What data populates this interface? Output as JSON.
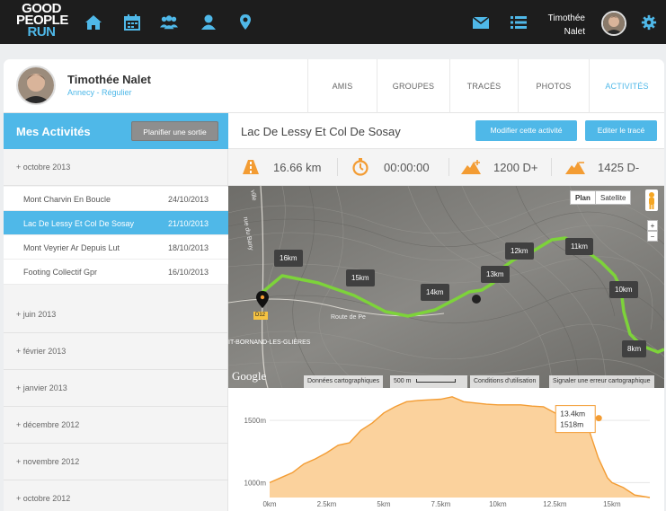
{
  "app": {
    "logo_line1": "GOOD",
    "logo_line2": "PEOPLE",
    "logo_line3": "RUN",
    "user_first": "Timothée",
    "user_last": "Nalet"
  },
  "profile": {
    "name": "Timothée Nalet",
    "subtitle": "Annecy - Régulier",
    "tabs": [
      {
        "label": "AMIS"
      },
      {
        "label": "GROUPES"
      },
      {
        "label": "TRACÉS"
      },
      {
        "label": "PHOTOS"
      },
      {
        "label": "ACTIVITÉS"
      }
    ]
  },
  "sidebar": {
    "title": "Mes Activités",
    "plan_button": "Planifier une sortie",
    "groups": [
      {
        "label": "+ octobre 2013"
      },
      {
        "label": "+ juin 2013"
      },
      {
        "label": "+ février 2013"
      },
      {
        "label": "+ janvier 2013"
      },
      {
        "label": "+ décembre 2012"
      },
      {
        "label": "+ novembre 2012"
      },
      {
        "label": "+ octobre 2012"
      }
    ],
    "activities": [
      {
        "name": "Mont Charvin En Boucle",
        "date": "24/10/2013"
      },
      {
        "name": "Lac De Lessy Et Col De Sosay",
        "date": "21/10/2013"
      },
      {
        "name": "Mont Veyrier Ar Depuis Lut",
        "date": "18/10/2013"
      },
      {
        "name": "Footing Collectif Gpr",
        "date": "16/10/2013"
      }
    ]
  },
  "activity": {
    "title": "Lac De Lessy Et Col De Sosay",
    "edit_button": "Modifier cette activité",
    "trace_button": "Editer le tracé",
    "distance": "16.66 km",
    "duration": "00:00:00",
    "ascent": "1200 D+",
    "descent": "1425 D-"
  },
  "map": {
    "plan_label": "Plan",
    "satellite_label": "Satellite",
    "zoom_in": "+",
    "zoom_out": "−",
    "road_marker": "D12",
    "road_label": "Route de Pe",
    "place_label": "IT-BORNAND-LES-GLIÈRES",
    "street_label": "rue du Bany",
    "street_label2": "ville",
    "google": "Google",
    "attrib_data": "Données cartographiques",
    "attrib_scale": "500 m",
    "attrib_terms": "Conditions d'utilisation",
    "attrib_report": "Signaler une erreur cartographique",
    "km_labels": [
      {
        "label": "16km"
      },
      {
        "label": "15km"
      },
      {
        "label": "14km"
      },
      {
        "label": "13km"
      },
      {
        "label": "12km"
      },
      {
        "label": "11km"
      },
      {
        "label": "10km"
      },
      {
        "label": "8km"
      }
    ]
  },
  "chart_data": {
    "type": "area",
    "xlabel": "",
    "ylabel": "",
    "xlim": [
      0,
      16.66
    ],
    "ylim": [
      880,
      1710
    ],
    "x_ticks": [
      "0km",
      "2.5km",
      "5km",
      "7.5km",
      "10km",
      "12.5km",
      "15km"
    ],
    "x_tick_values": [
      0,
      2.5,
      5,
      7.5,
      10,
      12.5,
      15
    ],
    "y_ticks": [
      "1000m",
      "1500m"
    ],
    "y_tick_values": [
      1000,
      1500
    ],
    "x": [
      0,
      0.5,
      1,
      1.5,
      2,
      2.5,
      3,
      3.5,
      4,
      4.5,
      5,
      5.5,
      6,
      6.5,
      7,
      7.5,
      8,
      8.5,
      9,
      9.5,
      10,
      10.5,
      11,
      11.5,
      12,
      12.5,
      13,
      13.4,
      13.8,
      14,
      14.4,
      14.8,
      15,
      15.5,
      16,
      16.66
    ],
    "y": [
      1000,
      1040,
      1080,
      1150,
      1190,
      1240,
      1300,
      1320,
      1420,
      1480,
      1560,
      1610,
      1650,
      1660,
      1665,
      1670,
      1690,
      1650,
      1640,
      1630,
      1625,
      1625,
      1625,
      1615,
      1610,
      1560,
      1550,
      1518,
      1500,
      1420,
      1200,
      1040,
      1000,
      960,
      900,
      880
    ],
    "tooltip": {
      "x_label": "13.4km",
      "y_label": "1518m",
      "x": 13.4,
      "y": 1518
    },
    "colors": {
      "fill": "#fbd29d",
      "line": "#f39c33"
    }
  }
}
